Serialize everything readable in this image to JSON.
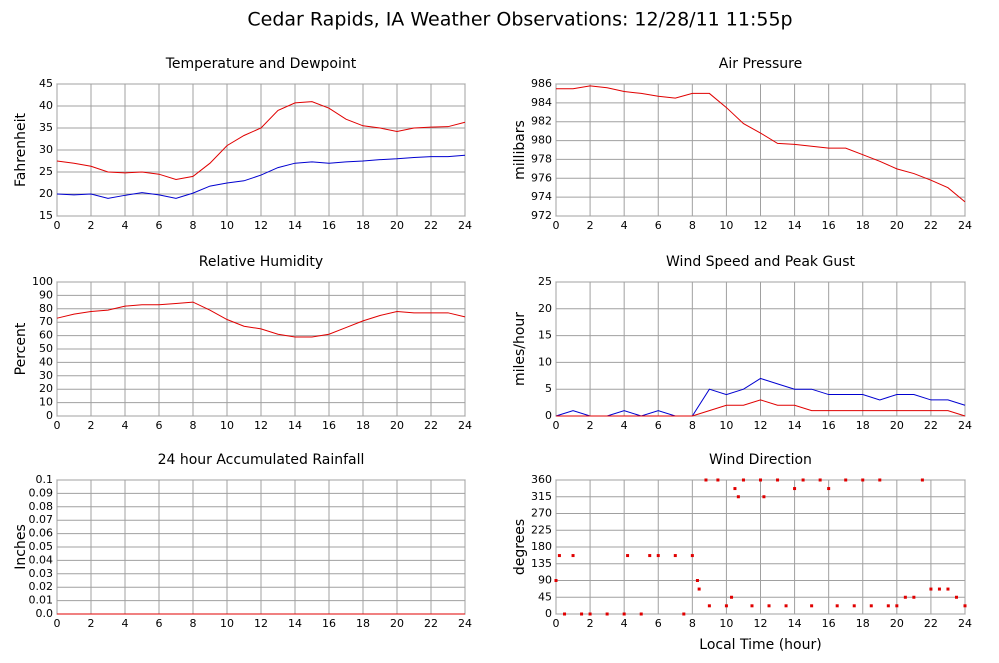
{
  "title": "Cedar Rapids, IA Weather Observations: 12/28/11 11:55p",
  "chart_data": [
    {
      "type": "line",
      "title": "Temperature and Dewpoint",
      "ylabel": "Fahrenheit",
      "x": [
        0,
        1,
        2,
        3,
        4,
        5,
        6,
        7,
        8,
        9,
        10,
        11,
        12,
        13,
        14,
        15,
        16,
        17,
        18,
        19,
        20,
        21,
        22,
        23,
        24
      ],
      "series": [
        {
          "color": "#e00000",
          "values": [
            27.5,
            27,
            26.3,
            25,
            24.8,
            25,
            24.5,
            23.3,
            24,
            27,
            31,
            33.3,
            35,
            39,
            40.7,
            41,
            39.5,
            37,
            35.5,
            35,
            34.2,
            35,
            35.2,
            35.3,
            36.3
          ]
        },
        {
          "color": "#0000d0",
          "values": [
            20,
            19.8,
            20,
            19,
            19.7,
            20.3,
            19.8,
            19,
            20.2,
            21.8,
            22.5,
            23,
            24.3,
            26,
            27,
            27.3,
            27,
            27.3,
            27.5,
            27.8,
            28,
            28.3,
            28.5,
            28.5,
            28.8
          ]
        }
      ],
      "xlim": [
        0,
        24
      ],
      "xticks": [
        0,
        2,
        4,
        6,
        8,
        10,
        12,
        14,
        16,
        18,
        20,
        22,
        24
      ],
      "ylim": [
        15,
        45
      ],
      "yticks": [
        15,
        20,
        25,
        30,
        35,
        40,
        45
      ],
      "grid": true
    },
    {
      "type": "line",
      "title": "Air Pressure",
      "ylabel": "millibars",
      "x": [
        0,
        1,
        2,
        3,
        4,
        5,
        6,
        7,
        8,
        9,
        10,
        11,
        12,
        13,
        14,
        15,
        16,
        17,
        18,
        19,
        20,
        21,
        22,
        23,
        24
      ],
      "series": [
        {
          "color": "#e00000",
          "values": [
            985.5,
            985.5,
            985.8,
            985.6,
            985.2,
            985,
            984.7,
            984.5,
            985,
            985,
            983.5,
            981.8,
            980.8,
            979.7,
            979.6,
            979.4,
            979.2,
            979.2,
            978.5,
            977.8,
            977,
            976.5,
            975.8,
            975,
            973.5
          ]
        }
      ],
      "xlim": [
        0,
        24
      ],
      "xticks": [
        0,
        2,
        4,
        6,
        8,
        10,
        12,
        14,
        16,
        18,
        20,
        22,
        24
      ],
      "ylim": [
        972,
        986
      ],
      "yticks": [
        972,
        974,
        976,
        978,
        980,
        982,
        984,
        986
      ],
      "grid": true
    },
    {
      "type": "line",
      "title": "Relative Humidity",
      "ylabel": "Percent",
      "x": [
        0,
        1,
        2,
        3,
        4,
        5,
        6,
        7,
        8,
        9,
        10,
        11,
        12,
        13,
        14,
        15,
        16,
        17,
        18,
        19,
        20,
        21,
        22,
        23,
        24
      ],
      "series": [
        {
          "color": "#e00000",
          "values": [
            73,
            76,
            78,
            79,
            82,
            83,
            83,
            84,
            85,
            79,
            72,
            67,
            65,
            61,
            59,
            59,
            61,
            66,
            71,
            75,
            78,
            77,
            77,
            77,
            74
          ]
        }
      ],
      "xlim": [
        0,
        24
      ],
      "xticks": [
        0,
        2,
        4,
        6,
        8,
        10,
        12,
        14,
        16,
        18,
        20,
        22,
        24
      ],
      "ylim": [
        0,
        100
      ],
      "yticks": [
        0,
        10,
        20,
        30,
        40,
        50,
        60,
        70,
        80,
        90,
        100
      ],
      "grid": true
    },
    {
      "type": "line",
      "title": "Wind Speed and Peak Gust",
      "ylabel": "miles/hour",
      "x": [
        0,
        1,
        2,
        3,
        4,
        5,
        6,
        7,
        8,
        9,
        10,
        11,
        12,
        13,
        14,
        15,
        16,
        17,
        18,
        19,
        20,
        21,
        22,
        23,
        24
      ],
      "series": [
        {
          "color": "#0000d0",
          "values": [
            0,
            1,
            0,
            0,
            1,
            0,
            1,
            0,
            0,
            5,
            4,
            5,
            7,
            6,
            5,
            5,
            4,
            4,
            4,
            3,
            4,
            4,
            3,
            3,
            2
          ]
        },
        {
          "color": "#e00000",
          "values": [
            0,
            0,
            0,
            0,
            0,
            0,
            0,
            0,
            0,
            1,
            2,
            2,
            3,
            2,
            2,
            1,
            1,
            1,
            1,
            1,
            1,
            1,
            1,
            1,
            0
          ]
        }
      ],
      "xlim": [
        0,
        24
      ],
      "xticks": [
        0,
        2,
        4,
        6,
        8,
        10,
        12,
        14,
        16,
        18,
        20,
        22,
        24
      ],
      "ylim": [
        0,
        25
      ],
      "yticks": [
        0,
        5,
        10,
        15,
        20,
        25
      ],
      "grid": true
    },
    {
      "type": "line",
      "title": "24 hour Accumulated Rainfall",
      "ylabel": "Inches",
      "x": [
        0,
        24
      ],
      "series": [
        {
          "color": "#e00000",
          "values": [
            0,
            0
          ]
        }
      ],
      "xlim": [
        0,
        24
      ],
      "xticks": [
        0,
        2,
        4,
        6,
        8,
        10,
        12,
        14,
        16,
        18,
        20,
        22,
        24
      ],
      "ylim": [
        0,
        0.1
      ],
      "yticks": [
        {
          "value": 0,
          "label": "0.0"
        },
        0.01,
        0.02,
        0.03,
        0.04,
        0.05,
        0.06,
        0.07,
        0.08,
        0.09,
        0.1
      ],
      "grid": true
    },
    {
      "type": "scatter",
      "title": "Wind Direction",
      "ylabel": "degrees",
      "xlabel": "Local Time (hour)",
      "x": [
        0,
        0.2,
        0.5,
        1,
        1.5,
        2,
        3,
        4,
        4.2,
        5,
        5.5,
        6,
        7,
        7.5,
        8,
        8.3,
        8.4,
        8.8,
        9,
        9.5,
        10,
        10.3,
        10.5,
        10.7,
        11,
        11.5,
        12,
        12.2,
        12.5,
        13,
        13.5,
        14,
        14.5,
        15,
        15.5,
        16,
        16.5,
        17,
        17.5,
        18,
        18.5,
        19,
        19.5,
        20,
        20.5,
        21,
        21.5,
        22,
        22.5,
        23,
        23.5,
        24
      ],
      "series": [
        {
          "color": "#e00000",
          "values": [
            90,
            157,
            0,
            157,
            0,
            0,
            0,
            0,
            157,
            0,
            157,
            157,
            157,
            0,
            157,
            90,
            67,
            360,
            22,
            360,
            22,
            45,
            337,
            315,
            360,
            22,
            360,
            315,
            22,
            360,
            22,
            337,
            360,
            22,
            360,
            337,
            22,
            360,
            22,
            360,
            22,
            360,
            22,
            22,
            45,
            45,
            360,
            67,
            67,
            67,
            45,
            22
          ]
        }
      ],
      "xlim": [
        0,
        24
      ],
      "xticks": [
        0,
        2,
        4,
        6,
        8,
        10,
        12,
        14,
        16,
        18,
        20,
        22,
        24
      ],
      "ylim": [
        0,
        360
      ],
      "yticks": [
        0,
        45,
        90,
        135,
        180,
        225,
        270,
        315,
        360
      ],
      "grid": true
    }
  ]
}
